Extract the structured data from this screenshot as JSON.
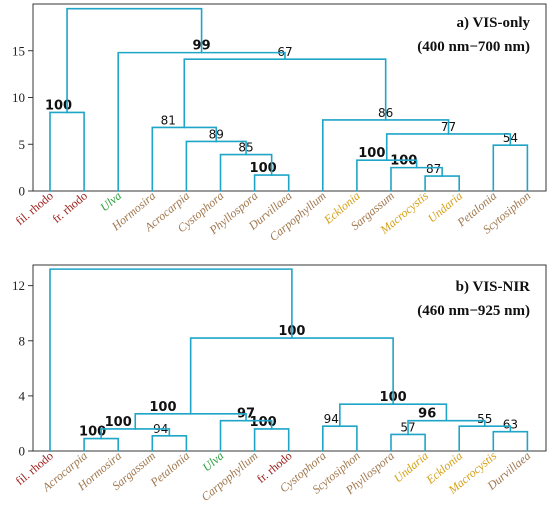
{
  "colors": {
    "branch": "#1fa5c8",
    "rhodo": "#9b1b17",
    "ulva": "#2e9e3d",
    "brown": "#a0784f",
    "yellow": "#d4a017"
  },
  "chart_data": [
    {
      "type": "dendrogram",
      "title": "a) VIS-only",
      "subtitle": "(400 nm−700 nm)",
      "ylim": [
        0,
        20
      ],
      "yticks": [
        0,
        5,
        10,
        15
      ],
      "leaves": [
        {
          "label": "fil. rhodo",
          "group": "rhodo",
          "italic": false
        },
        {
          "label": "fr. rhodo",
          "group": "rhodo",
          "italic": false
        },
        {
          "label": "Ulva",
          "group": "ulva",
          "italic": true
        },
        {
          "label": "Hormosira",
          "group": "brown",
          "italic": true
        },
        {
          "label": "Acrocarpia",
          "group": "brown",
          "italic": true
        },
        {
          "label": "Cystophora",
          "group": "brown",
          "italic": true
        },
        {
          "label": "Phyllospora",
          "group": "brown",
          "italic": true
        },
        {
          "label": "Durvillaea",
          "group": "brown",
          "italic": true
        },
        {
          "label": "Carpophyllum",
          "group": "brown",
          "italic": true
        },
        {
          "label": "Ecklonia",
          "group": "yellow",
          "italic": true
        },
        {
          "label": "Sargassum",
          "group": "brown",
          "italic": true
        },
        {
          "label": "Macrocystis",
          "group": "yellow",
          "italic": true
        },
        {
          "label": "Undaria",
          "group": "yellow",
          "italic": true
        },
        {
          "label": "Petalonia",
          "group": "brown",
          "italic": true
        },
        {
          "label": "Scytosiphon",
          "group": "brown",
          "italic": true
        }
      ],
      "merges": [
        {
          "a": "L0",
          "b": "L1",
          "h": 8.4,
          "support": "100",
          "bold": true,
          "label_side": "left"
        },
        {
          "a": "L6",
          "b": "L7",
          "h": 1.7,
          "support": "100",
          "bold": true,
          "label_side": "left"
        },
        {
          "a": "L5",
          "b": "N1",
          "h": 3.9,
          "support": "85",
          "bold": false,
          "label_side": "center"
        },
        {
          "a": "L4",
          "b": "N2",
          "h": 5.3,
          "support": "89",
          "bold": false,
          "label_side": "center"
        },
        {
          "a": "L3",
          "b": "N3",
          "h": 6.8,
          "support": "81",
          "bold": false,
          "label_side": "left"
        },
        {
          "a": "L11",
          "b": "L12",
          "h": 1.6,
          "support": "87",
          "bold": false,
          "label_side": "left"
        },
        {
          "a": "L10",
          "b": "N5",
          "h": 2.5,
          "support": "100",
          "bold": true,
          "label_side": "left"
        },
        {
          "a": "L9",
          "b": "N6",
          "h": 3.3,
          "support": "100",
          "bold": true,
          "label_side": "left"
        },
        {
          "a": "L13",
          "b": "L14",
          "h": 4.9,
          "support": "54",
          "bold": false,
          "label_side": "center"
        },
        {
          "a": "N7",
          "b": "N8",
          "h": 6.1,
          "support": "77",
          "bold": false,
          "label_side": "center"
        },
        {
          "a": "L8",
          "b": "N9",
          "h": 7.6,
          "support": "86",
          "bold": false,
          "label_side": "center"
        },
        {
          "a": "N4",
          "b": "N10",
          "h": 14.1,
          "support": "67",
          "bold": false,
          "label_side": "center"
        },
        {
          "a": "L2",
          "b": "N11",
          "h": 14.8,
          "support": "99",
          "bold": true,
          "label_side": "center"
        },
        {
          "a": "N0",
          "b": "N12",
          "h": 19.5,
          "support": "",
          "bold": false,
          "label_side": "center"
        }
      ]
    },
    {
      "type": "dendrogram",
      "title": "b) VIS-NIR",
      "subtitle": "(460 nm−925 nm)",
      "ylim": [
        0,
        13.5
      ],
      "yticks": [
        0,
        4,
        8,
        12
      ],
      "leaves": [
        {
          "label": "fil. rhodo",
          "group": "rhodo",
          "italic": false
        },
        {
          "label": "Acrocarpia",
          "group": "brown",
          "italic": true
        },
        {
          "label": "Hormosira",
          "group": "brown",
          "italic": true
        },
        {
          "label": "Sargassum",
          "group": "brown",
          "italic": true
        },
        {
          "label": "Petalonia",
          "group": "brown",
          "italic": true
        },
        {
          "label": "Ulva",
          "group": "ulva",
          "italic": true
        },
        {
          "label": "Carpophyllum",
          "group": "brown",
          "italic": true
        },
        {
          "label": "fr. rhodo",
          "group": "rhodo",
          "italic": false
        },
        {
          "label": "Cystophora",
          "group": "brown",
          "italic": true
        },
        {
          "label": "Scytosiphon",
          "group": "brown",
          "italic": true
        },
        {
          "label": "Phyllospora",
          "group": "brown",
          "italic": true
        },
        {
          "label": "Undaria",
          "group": "yellow",
          "italic": true
        },
        {
          "label": "Ecklonia",
          "group": "yellow",
          "italic": true
        },
        {
          "label": "Macrocystis",
          "group": "yellow",
          "italic": true
        },
        {
          "label": "Durvillaea",
          "group": "brown",
          "italic": true
        }
      ],
      "merges": [
        {
          "a": "L1",
          "b": "L2",
          "h": 0.9,
          "support": "100",
          "bold": true,
          "label_side": "left"
        },
        {
          "a": "L3",
          "b": "L4",
          "h": 1.1,
          "support": "94",
          "bold": false,
          "label_side": "left"
        },
        {
          "a": "N0",
          "b": "N1",
          "h": 1.6,
          "support": "100",
          "bold": true,
          "label_side": "left"
        },
        {
          "a": "L6",
          "b": "L7",
          "h": 1.6,
          "support": "100",
          "bold": true,
          "label_side": "left"
        },
        {
          "a": "L5",
          "b": "N3",
          "h": 2.2,
          "support": "97",
          "bold": true,
          "label_side": "center"
        },
        {
          "a": "N2",
          "b": "N4",
          "h": 2.7,
          "support": "100",
          "bold": true,
          "label_side": "left"
        },
        {
          "a": "L8",
          "b": "L9",
          "h": 1.8,
          "support": "94",
          "bold": false,
          "label_side": "left"
        },
        {
          "a": "L10",
          "b": "L11",
          "h": 1.2,
          "support": "57",
          "bold": false,
          "label_side": "center"
        },
        {
          "a": "L13",
          "b": "L14",
          "h": 1.4,
          "support": "63",
          "bold": false,
          "label_side": "center"
        },
        {
          "a": "L12",
          "b": "N8",
          "h": 1.8,
          "support": "55",
          "bold": false,
          "label_side": "center"
        },
        {
          "a": "N7",
          "b": "N9",
          "h": 2.2,
          "support": "96",
          "bold": true,
          "label_side": "left"
        },
        {
          "a": "N6",
          "b": "N10",
          "h": 3.4,
          "support": "100",
          "bold": true,
          "label_side": "center"
        },
        {
          "a": "N5",
          "b": "N11",
          "h": 8.2,
          "support": "100",
          "bold": true,
          "label_side": "center"
        },
        {
          "a": "L0",
          "b": "N12",
          "h": 13.2,
          "support": "",
          "bold": false,
          "label_side": "center"
        }
      ]
    }
  ]
}
